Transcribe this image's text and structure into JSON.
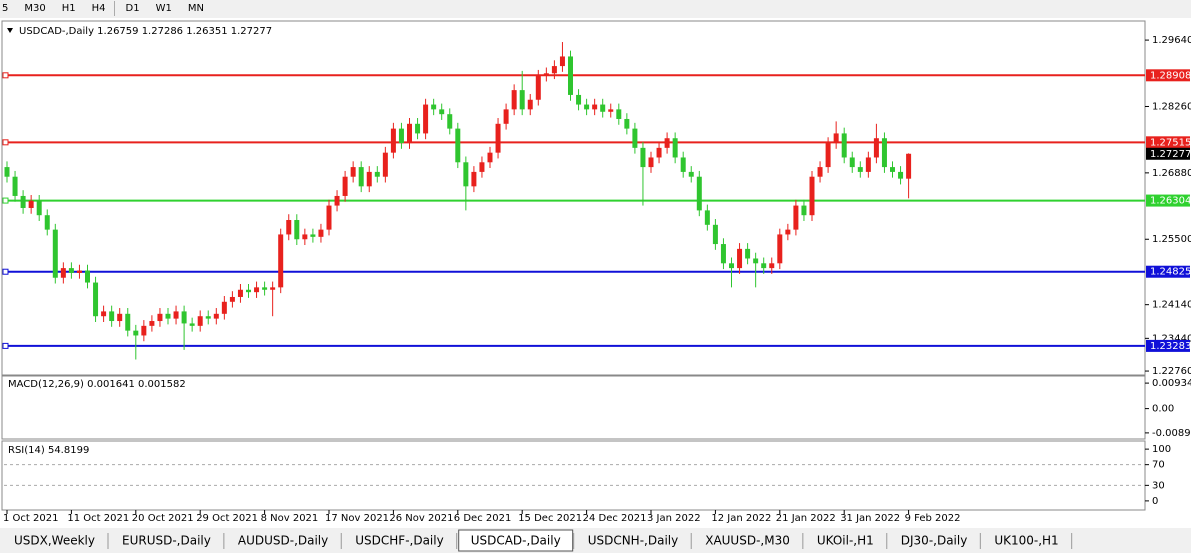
{
  "toolbar": {
    "items": [
      "5",
      "M30",
      "H1",
      "H4",
      "D1",
      "W1",
      "MN"
    ]
  },
  "tabs": {
    "items": [
      "USDX,Weekly",
      "EURUSD-,Daily",
      "AUDUSD-,Daily",
      "USDCHF-,Daily",
      "USDCAD-,Daily",
      "USDCNH-,Daily",
      "XAUUSD-,M30",
      "UKOil-,H1",
      "DJ30-,Daily",
      "UK100-,H1"
    ],
    "active": 4
  },
  "chart_data": [
    {
      "type": "candlestick",
      "title": "USDCAD-,Daily  1.26759 1.27286 1.26351 1.27277",
      "up_color": "#e8211d",
      "down_color": "#2fc52f",
      "ylim": [
        1.22678,
        1.30037
      ],
      "yticks": [
        {
          "value": 1.2964,
          "label": "1.29640"
        },
        {
          "value": 1.2826,
          "label": "1.28260"
        },
        {
          "value": 1.2688,
          "label": "1.26880"
        },
        {
          "value": 1.255,
          "label": "1.25500"
        },
        {
          "value": 1.2414,
          "label": "1.24140"
        },
        {
          "value": 1.2344,
          "label": "1.23440"
        },
        {
          "value": 1.2276,
          "label": "1.22760"
        }
      ],
      "levels": [
        {
          "value": 1.28908,
          "color": "#e8211d"
        },
        {
          "value": 1.27515,
          "color": "#e8211d"
        },
        {
          "value": 1.26304,
          "color": "#2fd12f"
        },
        {
          "value": 1.24825,
          "color": "#1010d8"
        },
        {
          "value": 1.23283,
          "color": "#1010d8"
        }
      ],
      "categories": [
        "1 Oct 2021",
        null,
        null,
        null,
        null,
        null,
        null,
        null,
        "11 Oct 2021",
        null,
        null,
        null,
        null,
        null,
        null,
        null,
        "20 Oct 2021",
        null,
        null,
        null,
        null,
        null,
        null,
        null,
        "29 Oct 2021",
        null,
        null,
        null,
        null,
        null,
        null,
        null,
        "8 Nov 2021",
        null,
        null,
        null,
        null,
        null,
        null,
        null,
        "17 Nov 2021",
        null,
        null,
        null,
        null,
        null,
        null,
        null,
        "26 Nov 2021",
        null,
        null,
        null,
        null,
        null,
        null,
        null,
        "6 Dec 2021",
        null,
        null,
        null,
        null,
        null,
        null,
        null,
        "15 Dec 2021",
        null,
        null,
        null,
        null,
        null,
        null,
        null,
        "24 Dec 2021",
        null,
        null,
        null,
        null,
        null,
        null,
        null,
        "3 Jan 2022",
        null,
        null,
        null,
        null,
        null,
        null,
        null,
        "12 Jan 2022",
        null,
        null,
        null,
        null,
        null,
        null,
        null,
        "21 Jan 2022",
        null,
        null,
        null,
        null,
        null,
        null,
        null,
        "31 Jan 2022",
        null,
        null,
        null,
        null,
        null,
        null,
        null,
        "9 Feb 2022"
      ],
      "ohlc": [
        [
          1.27,
          1.2712,
          1.2668,
          1.268
        ],
        [
          1.268,
          1.2692,
          1.2628,
          1.264
        ],
        [
          1.264,
          1.2652,
          1.2603,
          1.2615
        ],
        [
          1.2615,
          1.2642,
          1.2603,
          1.263
        ],
        [
          1.263,
          1.2642,
          1.2588,
          1.26
        ],
        [
          1.26,
          1.2612,
          1.2558,
          1.257
        ],
        [
          1.257,
          1.2582,
          1.2458,
          1.247
        ],
        [
          1.247,
          1.2502,
          1.2458,
          1.249
        ],
        [
          1.249,
          1.2502,
          1.2468,
          1.248
        ],
        [
          1.248,
          1.2497,
          1.2468,
          1.2485
        ],
        [
          1.2485,
          1.2497,
          1.2448,
          1.246
        ],
        [
          1.246,
          1.2472,
          1.2378,
          1.239
        ],
        [
          1.239,
          1.2412,
          1.2378,
          1.24
        ],
        [
          1.24,
          1.2412,
          1.2368,
          1.238
        ],
        [
          1.238,
          1.2407,
          1.2368,
          1.2395
        ],
        [
          1.2395,
          1.2407,
          1.2348,
          1.236
        ],
        [
          1.236,
          1.2372,
          1.23,
          1.235
        ],
        [
          1.235,
          1.2382,
          1.2338,
          1.237
        ],
        [
          1.237,
          1.2392,
          1.2358,
          1.238
        ],
        [
          1.238,
          1.2407,
          1.2368,
          1.2395
        ],
        [
          1.2395,
          1.2407,
          1.2373,
          1.2385
        ],
        [
          1.2385,
          1.2412,
          1.2373,
          1.24
        ],
        [
          1.24,
          1.2412,
          1.232,
          1.2375
        ],
        [
          1.2375,
          1.2387,
          1.2358,
          1.237
        ],
        [
          1.237,
          1.2402,
          1.2358,
          1.239
        ],
        [
          1.239,
          1.2402,
          1.2373,
          1.2385
        ],
        [
          1.2385,
          1.2407,
          1.2373,
          1.2395
        ],
        [
          1.2395,
          1.2432,
          1.2383,
          1.242
        ],
        [
          1.242,
          1.2442,
          1.2408,
          1.243
        ],
        [
          1.243,
          1.2457,
          1.2418,
          1.2445
        ],
        [
          1.2445,
          1.2457,
          1.2428,
          1.244
        ],
        [
          1.244,
          1.2462,
          1.2428,
          1.245
        ],
        [
          1.245,
          1.2462,
          1.2433,
          1.2445
        ],
        [
          1.2445,
          1.2462,
          1.239,
          1.245
        ],
        [
          1.245,
          1.2572,
          1.2438,
          1.256
        ],
        [
          1.256,
          1.2602,
          1.2548,
          1.259
        ],
        [
          1.259,
          1.2602,
          1.2538,
          1.255
        ],
        [
          1.255,
          1.2572,
          1.2538,
          1.256
        ],
        [
          1.256,
          1.2572,
          1.2543,
          1.2555
        ],
        [
          1.2555,
          1.2582,
          1.2543,
          1.257
        ],
        [
          1.257,
          1.2632,
          1.2558,
          1.262
        ],
        [
          1.262,
          1.2652,
          1.2608,
          1.264
        ],
        [
          1.264,
          1.2692,
          1.2628,
          1.268
        ],
        [
          1.268,
          1.2712,
          1.2668,
          1.27
        ],
        [
          1.27,
          1.2712,
          1.2648,
          1.266
        ],
        [
          1.266,
          1.2702,
          1.2648,
          1.269
        ],
        [
          1.269,
          1.2702,
          1.2668,
          1.268
        ],
        [
          1.268,
          1.2742,
          1.2668,
          1.273
        ],
        [
          1.273,
          1.2792,
          1.2718,
          1.278
        ],
        [
          1.278,
          1.2792,
          1.2738,
          1.275
        ],
        [
          1.275,
          1.2802,
          1.2738,
          1.279
        ],
        [
          1.279,
          1.2802,
          1.2758,
          1.277
        ],
        [
          1.277,
          1.2842,
          1.2758,
          1.283
        ],
        [
          1.283,
          1.2842,
          1.2808,
          1.282
        ],
        [
          1.282,
          1.2832,
          1.2798,
          1.281
        ],
        [
          1.281,
          1.2822,
          1.2768,
          1.278
        ],
        [
          1.278,
          1.2792,
          1.2698,
          1.271
        ],
        [
          1.271,
          1.2722,
          1.261,
          1.266
        ],
        [
          1.266,
          1.2702,
          1.2648,
          1.269
        ],
        [
          1.269,
          1.2722,
          1.2678,
          1.271
        ],
        [
          1.271,
          1.2742,
          1.2698,
          1.273
        ],
        [
          1.273,
          1.2802,
          1.2718,
          1.279
        ],
        [
          1.279,
          1.2832,
          1.2778,
          1.282
        ],
        [
          1.282,
          1.2872,
          1.2808,
          1.286
        ],
        [
          1.286,
          1.29,
          1.2808,
          1.282
        ],
        [
          1.282,
          1.2852,
          1.2808,
          1.284
        ],
        [
          1.284,
          1.2902,
          1.2828,
          1.289
        ],
        [
          1.289,
          1.2907,
          1.2878,
          1.2895
        ],
        [
          1.2895,
          1.2922,
          1.2883,
          1.291
        ],
        [
          1.291,
          1.296,
          1.2898,
          1.293
        ],
        [
          1.293,
          1.2942,
          1.2838,
          1.285
        ],
        [
          1.285,
          1.2862,
          1.2818,
          1.283
        ],
        [
          1.283,
          1.2842,
          1.2808,
          1.282
        ],
        [
          1.282,
          1.2842,
          1.2808,
          1.283
        ],
        [
          1.283,
          1.2842,
          1.2803,
          1.2815
        ],
        [
          1.2815,
          1.2832,
          1.2803,
          1.282
        ],
        [
          1.282,
          1.2832,
          1.2788,
          1.28
        ],
        [
          1.28,
          1.2812,
          1.2768,
          1.278
        ],
        [
          1.278,
          1.2792,
          1.2728,
          1.274
        ],
        [
          1.274,
          1.2752,
          1.262,
          1.27
        ],
        [
          1.27,
          1.2732,
          1.2688,
          1.272
        ],
        [
          1.272,
          1.2752,
          1.2708,
          1.274
        ],
        [
          1.274,
          1.2772,
          1.2728,
          1.276
        ],
        [
          1.276,
          1.2772,
          1.2708,
          1.272
        ],
        [
          1.272,
          1.2732,
          1.2678,
          1.269
        ],
        [
          1.269,
          1.2702,
          1.2668,
          1.268
        ],
        [
          1.268,
          1.2692,
          1.2598,
          1.261
        ],
        [
          1.261,
          1.2622,
          1.2568,
          1.258
        ],
        [
          1.258,
          1.2592,
          1.2528,
          1.254
        ],
        [
          1.254,
          1.2552,
          1.2488,
          1.25
        ],
        [
          1.25,
          1.2512,
          1.245,
          1.249
        ],
        [
          1.249,
          1.2542,
          1.2478,
          1.253
        ],
        [
          1.253,
          1.2542,
          1.2498,
          1.251
        ],
        [
          1.251,
          1.2522,
          1.245,
          1.25
        ],
        [
          1.25,
          1.2512,
          1.2478,
          1.249
        ],
        [
          1.249,
          1.2512,
          1.2478,
          1.25
        ],
        [
          1.25,
          1.2572,
          1.2488,
          1.256
        ],
        [
          1.256,
          1.2582,
          1.2548,
          1.257
        ],
        [
          1.257,
          1.2632,
          1.2558,
          1.262
        ],
        [
          1.262,
          1.2632,
          1.2588,
          1.26
        ],
        [
          1.26,
          1.2692,
          1.2588,
          1.268
        ],
        [
          1.268,
          1.2712,
          1.2668,
          1.27
        ],
        [
          1.27,
          1.2762,
          1.2688,
          1.275
        ],
        [
          1.275,
          1.2795,
          1.2738,
          1.277
        ],
        [
          1.277,
          1.2782,
          1.2708,
          1.272
        ],
        [
          1.272,
          1.2732,
          1.2688,
          1.27
        ],
        [
          1.27,
          1.2712,
          1.2678,
          1.269
        ],
        [
          1.269,
          1.2732,
          1.2678,
          1.272
        ],
        [
          1.272,
          1.279,
          1.2708,
          1.276
        ],
        [
          1.276,
          1.2772,
          1.2688,
          1.27
        ],
        [
          1.27,
          1.2712,
          1.2678,
          1.269
        ],
        [
          1.269,
          1.2702,
          1.2664,
          1.2676
        ],
        [
          1.26759,
          1.27286,
          1.26351,
          1.27277
        ]
      ]
    },
    {
      "type": "indicator",
      "title": "MACD(12,26,9) 0.001641 0.001582",
      "ylim": [
        -0.01114,
        0.01195
      ],
      "yticks": [
        0.009345,
        {
          "value": 0,
          "label": "0.00"
        },
        {
          "value": -0.0089,
          "label": "-0.00890"
        }
      ]
    },
    {
      "type": "indicator",
      "title": "RSI(14) 54.8199",
      "ylim": [
        -17.6,
        115.7
      ],
      "yticks": [
        100,
        70,
        30,
        0
      ],
      "levels": [
        70,
        30
      ]
    }
  ]
}
